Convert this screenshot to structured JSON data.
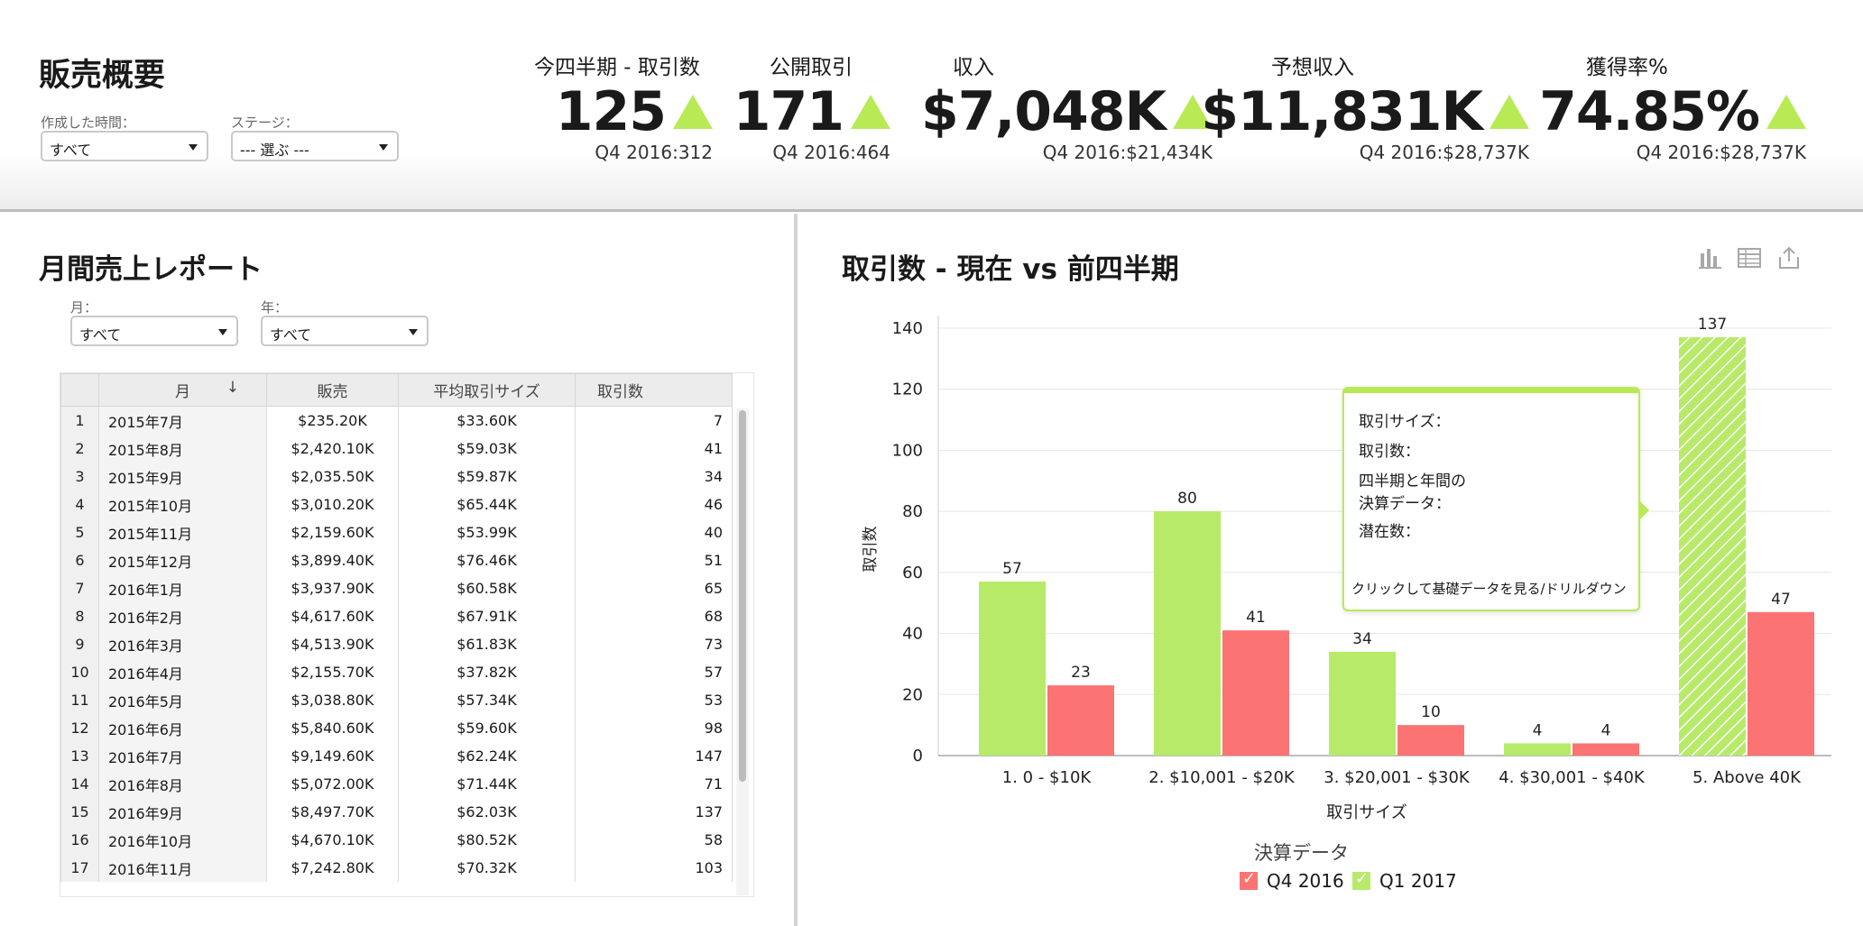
{
  "header": {
    "title": "販売概要",
    "filters": [
      {
        "label": "作成した時間：",
        "value": "すべて"
      },
      {
        "label": "ステージ：",
        "value": "--- 選ぶ ---"
      }
    ],
    "kpis": [
      {
        "label": "今四半期 - 取引数",
        "value": "125",
        "prev": "Q4 2016:312",
        "trend": "up"
      },
      {
        "label": "公開取引",
        "value": "171",
        "prev": "Q4 2016:464",
        "trend": "up"
      },
      {
        "label": "収入",
        "value": "$7,048K",
        "prev": "Q4 2016:$21,434K",
        "trend": "up"
      },
      {
        "label": "予想収入",
        "value": "$11,831K",
        "prev": "Q4 2016:$28,737K",
        "trend": "up"
      },
      {
        "label": "獲得率%",
        "value": "74.85%",
        "prev": "Q4 2016:$28,737K",
        "trend": "up"
      }
    ]
  },
  "report": {
    "title": "月間売上レポート",
    "filters": [
      {
        "label": "月：",
        "value": "すべて"
      },
      {
        "label": "年：",
        "value": "すべて"
      }
    ],
    "columns": [
      "月",
      "販売",
      "平均取引サイズ",
      "取引数"
    ],
    "rows": [
      [
        "1",
        "2015年7月",
        "$235.20K",
        "$33.60K",
        "7"
      ],
      [
        "2",
        "2015年8月",
        "$2,420.10K",
        "$59.03K",
        "41"
      ],
      [
        "3",
        "2015年9月",
        "$2,035.50K",
        "$59.87K",
        "34"
      ],
      [
        "4",
        "2015年10月",
        "$3,010.20K",
        "$65.44K",
        "46"
      ],
      [
        "5",
        "2015年11月",
        "$2,159.60K",
        "$53.99K",
        "40"
      ],
      [
        "6",
        "2015年12月",
        "$3,899.40K",
        "$76.46K",
        "51"
      ],
      [
        "7",
        "2016年1月",
        "$3,937.90K",
        "$60.58K",
        "65"
      ],
      [
        "8",
        "2016年2月",
        "$4,617.60K",
        "$67.91K",
        "68"
      ],
      [
        "9",
        "2016年3月",
        "$4,513.90K",
        "$61.83K",
        "73"
      ],
      [
        "10",
        "2016年4月",
        "$2,155.70K",
        "$37.82K",
        "57"
      ],
      [
        "11",
        "2016年5月",
        "$3,038.80K",
        "$57.34K",
        "53"
      ],
      [
        "12",
        "2016年6月",
        "$5,840.60K",
        "$59.60K",
        "98"
      ],
      [
        "13",
        "2016年7月",
        "$9,149.60K",
        "$62.24K",
        "147"
      ],
      [
        "14",
        "2016年8月",
        "$5,072.00K",
        "$71.44K",
        "71"
      ],
      [
        "15",
        "2016年9月",
        "$8,497.70K",
        "$62.03K",
        "137"
      ],
      [
        "16",
        "2016年10月",
        "$4,670.10K",
        "$80.52K",
        "58"
      ],
      [
        "17",
        "2016年11月",
        "$7,242.80K",
        "$70.32K",
        "103"
      ]
    ]
  },
  "chart_panel": {
    "title": "取引数 - 現在 vs 前四半期",
    "toolbar_icons": [
      "bar-chart-icon",
      "table-view-icon",
      "export-icon"
    ],
    "tooltip": {
      "lines": [
        "取引サイズ：",
        "取引数：",
        "四半期と年間の",
        "決算データ：",
        "潜在数："
      ],
      "footer": "クリックして基礎データを見る/ドリルダウン"
    },
    "legend_title": "決算データ",
    "legend": [
      {
        "name": "Q4 2016",
        "color": "#fb7373"
      },
      {
        "name": "Q1 2017",
        "color": "#b8ea6a"
      }
    ]
  },
  "chart_data": {
    "type": "bar",
    "categories": [
      "1. 0 - $10K",
      "2. $10,001 - $20K",
      "3. $20,001 - $30K",
      "4. $30,001 - $40K",
      "5. Above 40K"
    ],
    "series": [
      {
        "name": "Q1 2017",
        "color": "#b8ea6a",
        "values": [
          57,
          80,
          34,
          4,
          137
        ]
      },
      {
        "name": "Q4 2016",
        "color": "#fb7373",
        "values": [
          23,
          41,
          10,
          4,
          47
        ]
      }
    ],
    "xlabel": "取引サイズ",
    "ylabel": "取引数",
    "ylim": [
      0,
      150
    ],
    "yticks": [
      0,
      20,
      40,
      60,
      80,
      100,
      120,
      140
    ],
    "grid": true,
    "highlighted_bar": {
      "series": "Q1 2017",
      "category": "5. Above 40K"
    },
    "legend_position": "bottom"
  }
}
